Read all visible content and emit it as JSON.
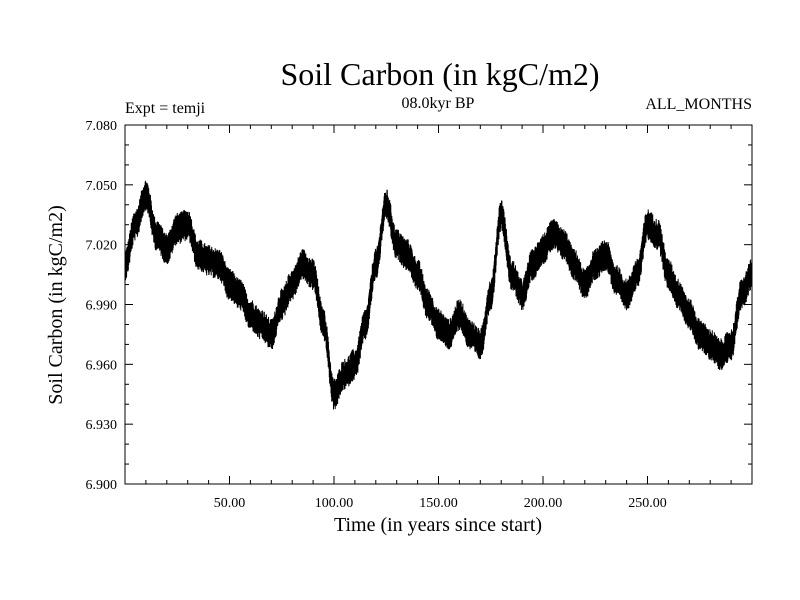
{
  "chart_data": {
    "type": "line",
    "title": "Soil Carbon (in kgC/m2)",
    "subtitle_left": "Expt = temji",
    "subtitle_center": "08.0kyr BP",
    "subtitle_right": "ALL_MONTHS",
    "xlabel": "Time (in years since start)",
    "ylabel": "Soil Carbon (in kgC/m2)",
    "xlim": [
      0,
      300
    ],
    "ylim": [
      6.9,
      7.08
    ],
    "xticks": [
      50,
      100,
      150,
      200,
      250
    ],
    "xtick_labels": [
      "50.00",
      "100.00",
      "150.00",
      "200.00",
      "250.00"
    ],
    "yticks": [
      6.9,
      6.93,
      6.96,
      6.99,
      7.02,
      7.05,
      7.08
    ],
    "ytick_labels": [
      "6.900",
      "6.930",
      "6.960",
      "6.990",
      "7.020",
      "7.050",
      "7.080"
    ],
    "series": [
      {
        "name": "Soil Carbon",
        "color": "#000000",
        "x": [
          0,
          5,
          10,
          15,
          20,
          25,
          30,
          35,
          40,
          45,
          50,
          55,
          60,
          65,
          70,
          75,
          80,
          85,
          90,
          95,
          100,
          105,
          110,
          115,
          120,
          125,
          130,
          135,
          140,
          145,
          150,
          155,
          160,
          165,
          170,
          175,
          180,
          185,
          190,
          195,
          200,
          205,
          210,
          215,
          220,
          225,
          230,
          235,
          240,
          245,
          250,
          255,
          260,
          265,
          270,
          275,
          280,
          285,
          290,
          295,
          300
        ],
        "values": [
          7.01,
          7.03,
          7.045,
          7.025,
          7.018,
          7.028,
          7.03,
          7.015,
          7.012,
          7.01,
          7.0,
          6.995,
          6.985,
          6.98,
          6.975,
          6.99,
          7.0,
          7.01,
          7.005,
          6.98,
          6.945,
          6.955,
          6.96,
          6.98,
          7.01,
          7.04,
          7.02,
          7.015,
          7.005,
          6.99,
          6.98,
          6.975,
          6.985,
          6.975,
          6.97,
          6.995,
          7.035,
          7.005,
          6.995,
          7.01,
          7.018,
          7.025,
          7.02,
          7.01,
          7.0,
          7.01,
          7.015,
          7.002,
          6.995,
          7.005,
          7.03,
          7.025,
          7.005,
          6.995,
          6.985,
          6.975,
          6.97,
          6.965,
          6.97,
          6.995,
          7.005
        ]
      }
    ],
    "noise_amplitude": 0.008
  }
}
